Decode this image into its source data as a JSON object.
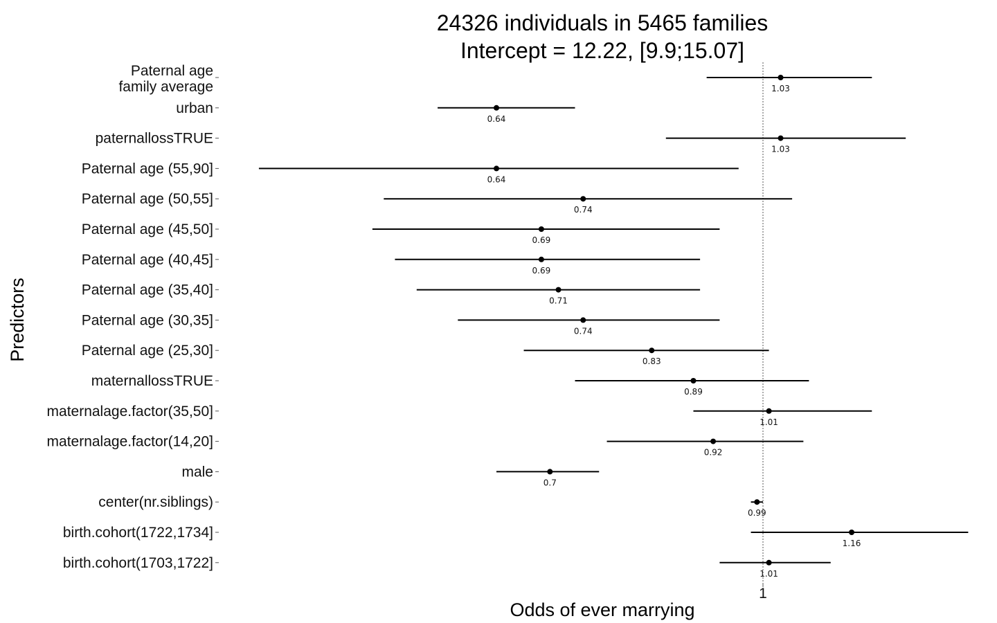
{
  "chart_data": {
    "type": "forest",
    "title_lines": [
      "24326 individuals in 5465 families",
      "Intercept = 12.22, [9.9;15.07]"
    ],
    "xlabel": "Odds of ever marrying",
    "ylabel": "Predictors",
    "x_ticks": [
      1
    ],
    "x_tick_labels": [
      "1"
    ],
    "xlim": [
      0.48,
      1.5
    ],
    "reference_line": 1,
    "rows": [
      {
        "label": "Paternal age\nfamily average",
        "estimate": 1.03,
        "label_text": "1.03",
        "ci": [
          0.91,
          1.2
        ]
      },
      {
        "label": "urban",
        "estimate": 0.64,
        "label_text": "0.64",
        "ci": [
          0.58,
          0.73
        ]
      },
      {
        "label": "paternallossTRUE",
        "estimate": 1.03,
        "label_text": "1.03",
        "ci": [
          0.85,
          1.27
        ]
      },
      {
        "label": "Paternal age (55,90]",
        "estimate": 0.64,
        "label_text": "0.64",
        "ci": [
          0.43,
          0.96
        ]
      },
      {
        "label": "Paternal age (50,55]",
        "estimate": 0.74,
        "label_text": "0.74",
        "ci": [
          0.53,
          1.05
        ]
      },
      {
        "label": "Paternal age (45,50]",
        "estimate": 0.69,
        "label_text": "0.69",
        "ci": [
          0.52,
          0.93
        ]
      },
      {
        "label": "Paternal age (40,45]",
        "estimate": 0.69,
        "label_text": "0.69",
        "ci": [
          0.54,
          0.9
        ]
      },
      {
        "label": "Paternal age (35,40]",
        "estimate": 0.71,
        "label_text": "0.71",
        "ci": [
          0.56,
          0.9
        ]
      },
      {
        "label": "Paternal age (30,35]",
        "estimate": 0.74,
        "label_text": "0.74",
        "ci": [
          0.6,
          0.93
        ]
      },
      {
        "label": "Paternal age (25,30]",
        "estimate": 0.83,
        "label_text": "0.83",
        "ci": [
          0.67,
          1.01
        ]
      },
      {
        "label": "maternallossTRUE",
        "estimate": 0.89,
        "label_text": "0.89",
        "ci": [
          0.73,
          1.08
        ]
      },
      {
        "label": "maternalage.factor(35,50]",
        "estimate": 1.01,
        "label_text": "1.01",
        "ci": [
          0.89,
          1.2
        ]
      },
      {
        "label": "maternalage.factor(14,20]",
        "estimate": 0.92,
        "label_text": "0.92",
        "ci": [
          0.77,
          1.07
        ]
      },
      {
        "label": "male",
        "estimate": 0.7,
        "label_text": "0.7",
        "ci": [
          0.64,
          0.76
        ]
      },
      {
        "label": "center(nr.siblings)",
        "estimate": 0.99,
        "label_text": "0.99",
        "ci": [
          0.98,
          1.0
        ]
      },
      {
        "label": "birth.cohort(1722,1734]",
        "estimate": 1.16,
        "label_text": "1.16",
        "ci": [
          0.98,
          1.41
        ]
      },
      {
        "label": "birth.cohort(1703,1722]",
        "estimate": 1.01,
        "label_text": "1.01",
        "ci": [
          0.93,
          1.12
        ]
      }
    ],
    "grid": false
  }
}
